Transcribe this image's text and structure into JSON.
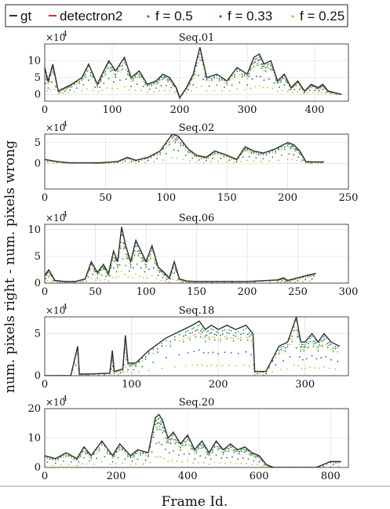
{
  "legend": {
    "entries": [
      {
        "label": "gt",
        "color": "#333333",
        "style": "line"
      },
      {
        "label": "detectron2",
        "color": "#e03030",
        "style": "line"
      },
      {
        "label": "f = 0.5",
        "color": "#1f9a5a",
        "style": "dots"
      },
      {
        "label": "f = 0.33",
        "color": "#1a6a8a",
        "style": "dots"
      },
      {
        "label": "f = 0.25",
        "color": "#c8c020",
        "style": "dots"
      }
    ]
  },
  "ylabel": "num. pixels right - num. pixels wrong",
  "xlabel": "Frame Id.",
  "chart_data": [
    {
      "type": "line",
      "title": "Seq.01",
      "exponent": "×10",
      "exponent_power": "4",
      "xlim": [
        0,
        450
      ],
      "ylim": [
        -2,
        15
      ],
      "xticks": [
        "0",
        "100",
        "200",
        "300",
        "400"
      ],
      "yticks": [
        "0",
        "5",
        "10"
      ],
      "series": [
        {
          "name": "gt",
          "x": [
            0,
            5,
            12,
            20,
            30,
            40,
            55,
            65,
            78,
            85,
            95,
            105,
            118,
            128,
            140,
            152,
            165,
            175,
            185,
            195,
            200,
            210,
            220,
            230,
            240,
            255,
            270,
            285,
            300,
            310,
            318,
            325,
            335,
            345,
            355,
            365,
            375,
            385,
            395,
            405,
            412,
            420,
            430,
            440
          ],
          "values": [
            8,
            4,
            9,
            1,
            2,
            3,
            5,
            9,
            3,
            6,
            10,
            7,
            11,
            5,
            7,
            3,
            4,
            6,
            5,
            2,
            -1,
            2,
            6,
            14,
            5,
            6,
            4,
            8,
            6,
            11,
            12,
            9,
            10,
            4,
            6,
            2,
            4,
            1,
            3,
            2,
            3,
            1,
            0.5,
            0
          ]
        }
      ]
    },
    {
      "type": "line",
      "title": "Seq.02",
      "exponent": "×10",
      "exponent_power": "4",
      "xlim": [
        0,
        250
      ],
      "ylim": [
        -6,
        7
      ],
      "xticks": [
        "0",
        "50",
        "100",
        "150",
        "200",
        "250"
      ],
      "yticks": [
        "0",
        "5"
      ],
      "series": [
        {
          "name": "gt",
          "x": [
            0,
            10,
            20,
            30,
            40,
            45,
            50,
            60,
            68,
            75,
            85,
            95,
            105,
            110,
            118,
            125,
            133,
            140,
            150,
            158,
            165,
            172,
            180,
            190,
            200,
            205,
            210,
            215,
            220,
            230
          ],
          "values": [
            1,
            0.5,
            0.2,
            0.2,
            0.2,
            0.2,
            0.3,
            0.5,
            1.5,
            0.8,
            1.5,
            3,
            7,
            6.5,
            3.5,
            2,
            1.5,
            3,
            2,
            1,
            4,
            3,
            2.5,
            3.5,
            5,
            4.5,
            3,
            0.5,
            0.4,
            0.4
          ]
        }
      ]
    },
    {
      "type": "line",
      "title": "Seq.06",
      "exponent": "×10",
      "exponent_power": "4",
      "xlim": [
        0,
        300
      ],
      "ylim": [
        0,
        11
      ],
      "xticks": [
        "0",
        "50",
        "100",
        "150",
        "200",
        "250",
        "300"
      ],
      "yticks": [
        "0",
        "5",
        "10"
      ],
      "series": [
        {
          "name": "gt",
          "x": [
            0,
            4,
            10,
            20,
            30,
            40,
            46,
            52,
            58,
            63,
            68,
            72,
            76,
            80,
            85,
            90,
            95,
            100,
            106,
            112,
            118,
            123,
            128,
            133,
            140,
            150,
            170,
            200,
            230,
            236,
            240,
            250,
            260,
            268
          ],
          "values": [
            1.5,
            2.5,
            0.5,
            0.3,
            0.3,
            0.8,
            4,
            2,
            3.5,
            1.8,
            6,
            4,
            10.5,
            7,
            4,
            8,
            6,
            4,
            7,
            3,
            2,
            1,
            4,
            0.8,
            0.4,
            0.3,
            0.3,
            0.3,
            0.6,
            1,
            0.5,
            1,
            1.5,
            1.8
          ]
        }
      ]
    },
    {
      "type": "line",
      "title": "Seq.18",
      "exponent": "×10",
      "exponent_power": "4",
      "xlim": [
        0,
        350
      ],
      "ylim": [
        0,
        7
      ],
      "xticks": [
        "0",
        "100",
        "200",
        "300"
      ],
      "yticks": [
        "0",
        "5"
      ],
      "series": [
        {
          "name": "gt",
          "x": [
            0,
            30,
            38,
            40,
            50,
            75,
            78,
            80,
            90,
            93,
            96,
            105,
            120,
            140,
            160,
            170,
            178,
            185,
            192,
            200,
            210,
            220,
            232,
            240,
            242,
            255,
            270,
            280,
            290,
            295,
            300,
            308,
            315,
            322,
            330,
            340
          ],
          "values": [
            0,
            0,
            3.5,
            0.2,
            0.2,
            0.3,
            3,
            0.5,
            0.8,
            4.8,
            1.5,
            1.5,
            3,
            4.5,
            5.5,
            6,
            6.5,
            5.5,
            6,
            5.5,
            6,
            5.5,
            6,
            5,
            0.5,
            0.5,
            3.5,
            4,
            7,
            4,
            4,
            5,
            4,
            5,
            4,
            3.5
          ]
        }
      ]
    },
    {
      "type": "line",
      "title": "Seq.20",
      "exponent": "×10",
      "exponent_power": "4",
      "xlim": [
        0,
        850
      ],
      "ylim": [
        0,
        20
      ],
      "xticks": [
        "0",
        "200",
        "400",
        "600",
        "800"
      ],
      "yticks": [
        "0",
        "10",
        "20"
      ],
      "series": [
        {
          "name": "gt",
          "x": [
            0,
            30,
            60,
            90,
            110,
            130,
            160,
            190,
            210,
            240,
            260,
            290,
            310,
            320,
            330,
            345,
            360,
            380,
            400,
            420,
            440,
            460,
            480,
            500,
            520,
            540,
            560,
            580,
            600,
            620,
            640,
            700,
            760,
            800,
            830
          ],
          "values": [
            4,
            3,
            5,
            3,
            7,
            4,
            9,
            4,
            8,
            4,
            6,
            5,
            17,
            18,
            16,
            10,
            12,
            8,
            11,
            6,
            9,
            5,
            9,
            6,
            8,
            6,
            7,
            5,
            4,
            1,
            0,
            0,
            0,
            2,
            2
          ]
        }
      ]
    }
  ]
}
